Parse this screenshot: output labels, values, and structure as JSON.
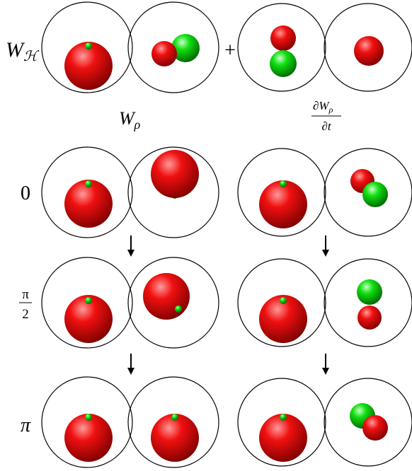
{
  "top_row": {
    "label": {
      "base": "W",
      "sub": "ℋ"
    },
    "operator": "+"
  },
  "column_headers": [
    {
      "base": "W",
      "sub": "ρ"
    },
    {
      "numerator": {
        "base": "∂W",
        "sub": "ρ"
      },
      "denominator": "∂t"
    }
  ],
  "row_labels": [
    "0",
    {
      "numerator": "π",
      "denominator": "2"
    },
    "π"
  ]
}
